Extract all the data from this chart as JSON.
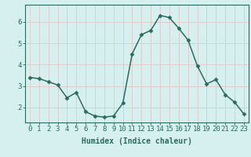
{
  "x": [
    0,
    1,
    2,
    3,
    4,
    5,
    6,
    7,
    8,
    9,
    10,
    11,
    12,
    13,
    14,
    15,
    16,
    17,
    18,
    19,
    20,
    21,
    22,
    23
  ],
  "y": [
    3.4,
    3.35,
    3.2,
    3.05,
    2.45,
    2.7,
    1.8,
    1.6,
    1.55,
    1.6,
    2.2,
    4.5,
    5.4,
    5.6,
    6.3,
    6.2,
    5.7,
    5.15,
    3.95,
    3.1,
    3.3,
    2.6,
    2.25,
    1.7
  ],
  "line_color": "#2d6b5e",
  "marker": "D",
  "marker_size": 2.5,
  "bg_color": "#d6f0f0",
  "grid_color": "#c8e8e8",
  "xlabel": "Humidex (Indice chaleur)",
  "xlabel_fontsize": 7,
  "xtick_labels": [
    "0",
    "1",
    "2",
    "3",
    "4",
    "5",
    "6",
    "7",
    "8",
    "9",
    "10",
    "11",
    "12",
    "13",
    "14",
    "15",
    "16",
    "17",
    "18",
    "19",
    "20",
    "21",
    "22",
    "23"
  ],
  "ytick_values": [
    2,
    3,
    4,
    5,
    6
  ],
  "ylim": [
    1.3,
    6.8
  ],
  "xlim": [
    -0.5,
    23.5
  ],
  "tick_fontsize": 6.5
}
